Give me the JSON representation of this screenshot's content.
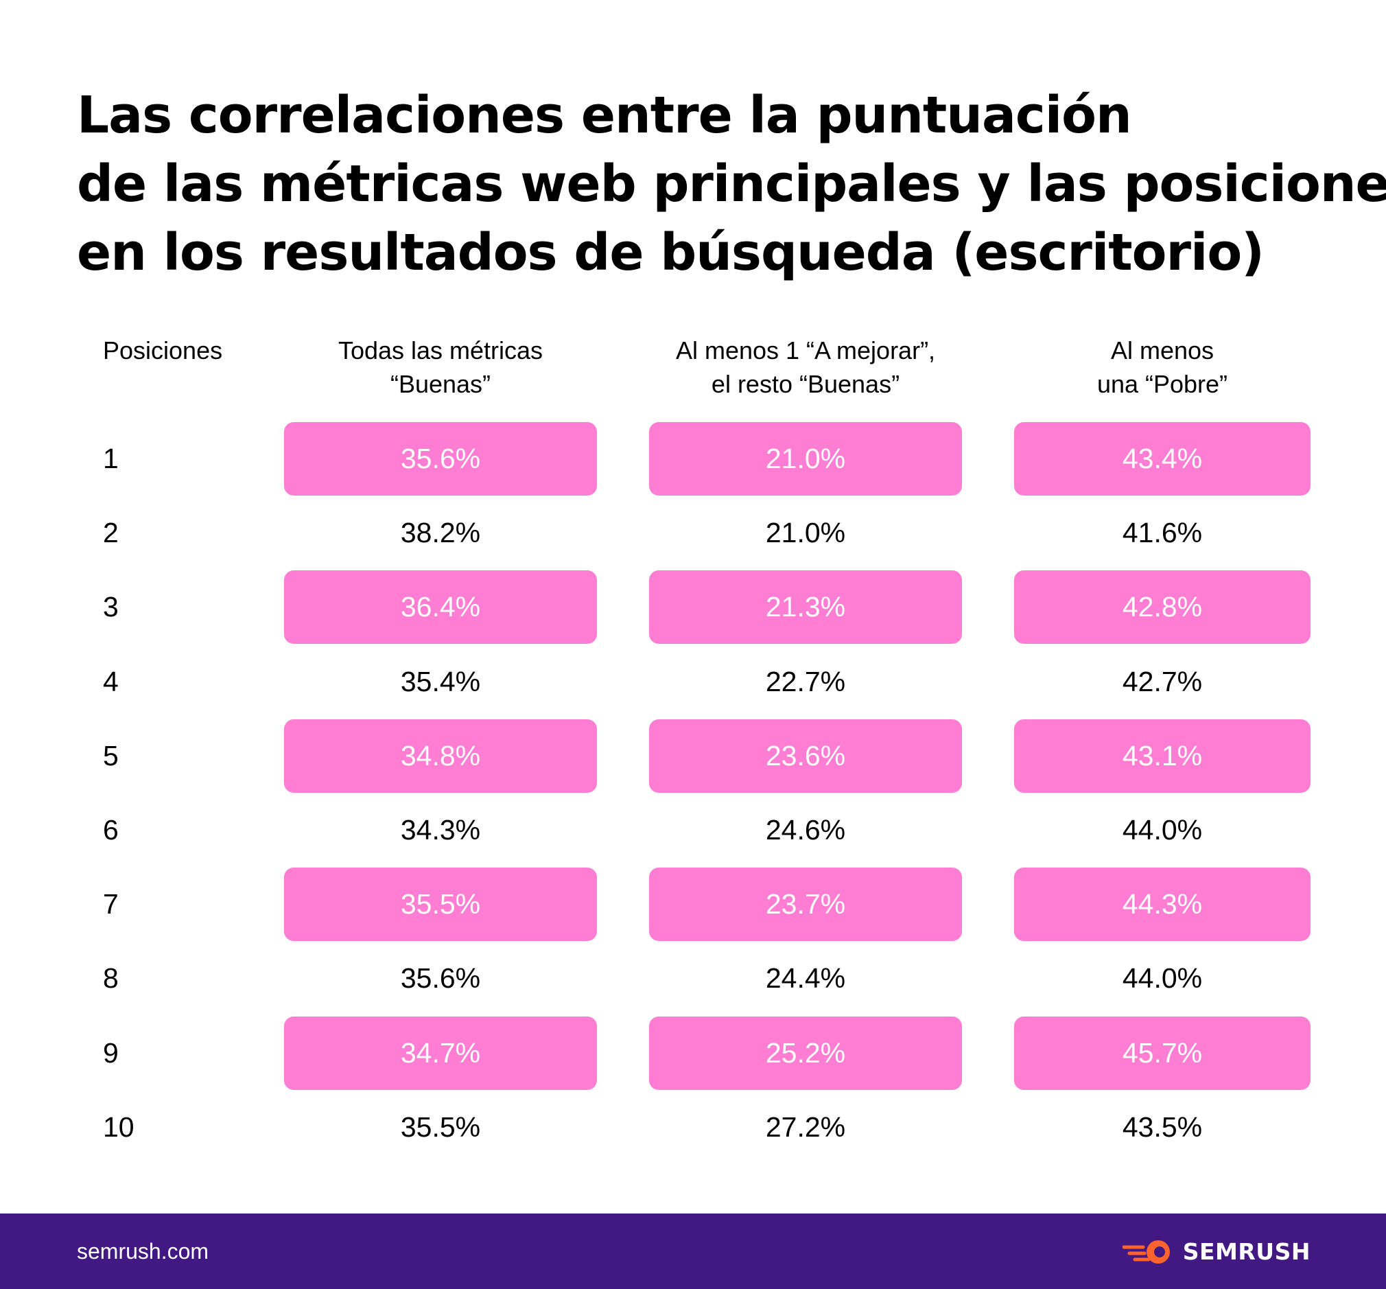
{
  "title_lines": [
    "Las correlaciones entre la puntuación",
    "de las métricas web principales y las posiciones",
    "en los resultados de búsqueda (escritorio)"
  ],
  "headers": {
    "position": "Posiciones",
    "col1": [
      "Todas las métricas",
      "“Buenas”"
    ],
    "col2": [
      "Al menos 1 “A mejorar”,",
      "el resto “Buenas”"
    ],
    "col3": [
      "Al menos",
      "una “Pobre”"
    ]
  },
  "rows": [
    {
      "position": "1",
      "good": "35.6%",
      "improve": "21.0%",
      "poor": "43.4%"
    },
    {
      "position": "2",
      "good": "38.2%",
      "improve": "21.0%",
      "poor": "41.6%"
    },
    {
      "position": "3",
      "good": "36.4%",
      "improve": "21.3%",
      "poor": "42.8%"
    },
    {
      "position": "4",
      "good": "35.4%",
      "improve": "22.7%",
      "poor": "42.7%"
    },
    {
      "position": "5",
      "good": "34.8%",
      "improve": "23.6%",
      "poor": "43.1%"
    },
    {
      "position": "6",
      "good": "34.3%",
      "improve": "24.6%",
      "poor": "44.0%"
    },
    {
      "position": "7",
      "good": "35.5%",
      "improve": "23.7%",
      "poor": "44.3%"
    },
    {
      "position": "8",
      "good": "35.6%",
      "improve": "24.4%",
      "poor": "44.0%"
    },
    {
      "position": "9",
      "good": "34.7%",
      "improve": "25.2%",
      "poor": "45.7%"
    },
    {
      "position": "10",
      "good": "35.5%",
      "improve": "27.2%",
      "poor": "43.5%"
    }
  ],
  "chart_data": {
    "type": "table",
    "title": "Las correlaciones entre la puntuación de las métricas web principales y las posiciones en los resultados de búsqueda (escritorio)",
    "columns": [
      "Posiciones",
      "Todas las métricas “Buenas”",
      "Al menos 1 “A mejorar”, el resto “Buenas”",
      "Al menos una “Pobre”"
    ],
    "x": [
      1,
      2,
      3,
      4,
      5,
      6,
      7,
      8,
      9,
      10
    ],
    "series": [
      {
        "name": "Todas las métricas “Buenas”",
        "values": [
          35.6,
          38.2,
          36.4,
          35.4,
          34.8,
          34.3,
          35.5,
          35.6,
          34.7,
          35.5
        ]
      },
      {
        "name": "Al menos 1 “A mejorar”, el resto “Buenas”",
        "values": [
          21.0,
          21.0,
          21.3,
          22.7,
          23.6,
          24.6,
          23.7,
          24.4,
          25.2,
          27.2
        ]
      },
      {
        "name": "Al menos una “Pobre”",
        "values": [
          43.4,
          41.6,
          42.8,
          42.7,
          43.1,
          44.0,
          44.3,
          44.0,
          45.7,
          43.5
        ]
      }
    ]
  },
  "colors": {
    "highlight": "#ff7dd2",
    "footer": "#421983",
    "brand_orange": "#ff642d"
  },
  "footer": {
    "site": "semrush.com",
    "brand": "SEMRUSH",
    "logo_icon": "semrush-fireball-icon"
  }
}
